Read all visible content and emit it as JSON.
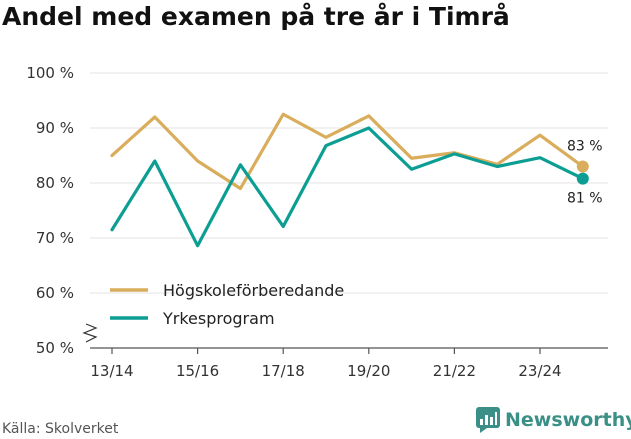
{
  "chart_data": {
    "type": "line",
    "title": "Andel med examen på tre år i Timrå",
    "categories": [
      "13/14",
      "14/15",
      "15/16",
      "16/17",
      "17/18",
      "18/19",
      "19/20",
      "20/21",
      "21/22",
      "22/23",
      "23/24",
      "24/25"
    ],
    "x_tick_labels": [
      "13/14",
      "15/16",
      "17/18",
      "19/20",
      "21/22",
      "23/24"
    ],
    "y_tick_labels": [
      "50 %",
      "60 %",
      "70 %",
      "80 %",
      "90 %",
      "100 %"
    ],
    "ylim": [
      50,
      100
    ],
    "y_ticks": [
      50,
      60,
      70,
      80,
      90,
      100
    ],
    "grid": true,
    "legend_position": "bottom-left",
    "series": [
      {
        "name": "Högskoleförberedande",
        "color": "#d9ad5b",
        "values": [
          85,
          92,
          84,
          79,
          92.5,
          88.3,
          92.2,
          84.5,
          85.5,
          83.4,
          88.7,
          83
        ],
        "end_label": "83 %"
      },
      {
        "name": "Yrkesprogram",
        "color": "#0c9e93",
        "values": [
          71.5,
          84,
          68.6,
          83.3,
          72.1,
          86.8,
          90,
          82.5,
          85.3,
          83,
          84.6,
          80.8
        ],
        "end_label": "81 %"
      }
    ],
    "source": "Källa: Skolverket",
    "brand": "Newsworthy",
    "colors": {
      "grid": "#e3e3e3",
      "axis": "#555555",
      "brand": "#3a8f86"
    }
  }
}
